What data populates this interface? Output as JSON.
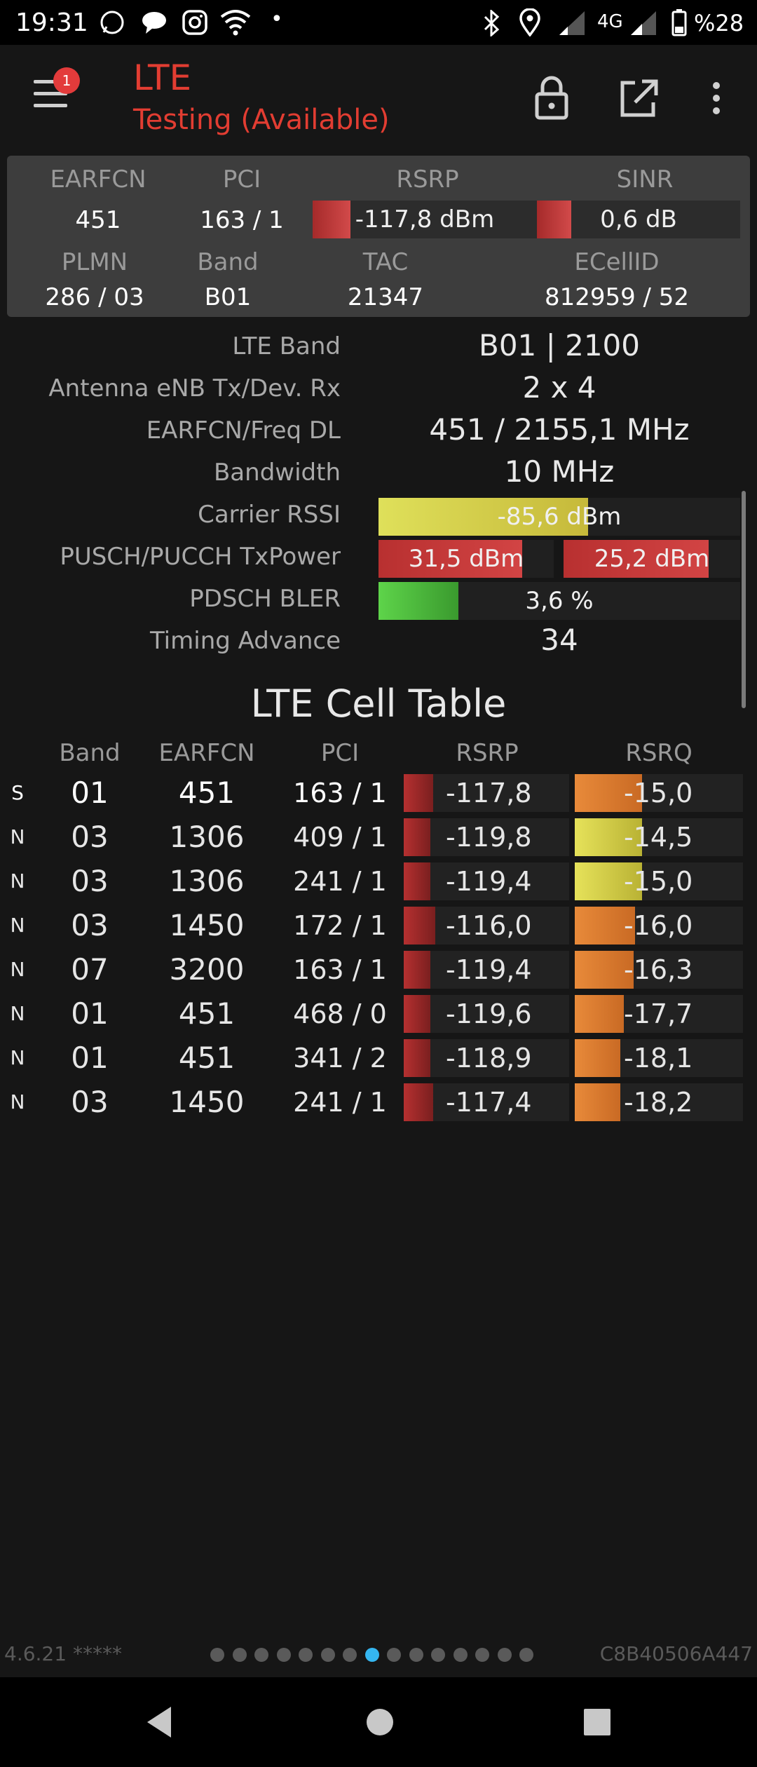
{
  "status_bar": {
    "time": "19:31",
    "network": "4G",
    "battery": "%28",
    "icons": [
      "whatsapp-icon",
      "chat-icon",
      "instagram-icon",
      "wifi-icon",
      "dot-icon",
      "bluetooth-icon",
      "location-icon",
      "signal-icon",
      "signal-icon",
      "battery-icon"
    ]
  },
  "app_bar": {
    "title": "LTE",
    "subtitle": "Testing (Available)",
    "badge_count": "1",
    "accent_color": "#e23d32"
  },
  "summary": {
    "headers": {
      "earfcn": "EARFCN",
      "pci": "PCI",
      "rsrp": "RSRP",
      "sinr": "SINR",
      "plmn": "PLMN",
      "band": "Band",
      "tac": "TAC",
      "ecellid": "ECellID"
    },
    "values": {
      "earfcn": "451",
      "pci": "163 / 1",
      "rsrp": "-117,8 dBm",
      "sinr": "0,6 dB",
      "plmn": "286 / 03",
      "band": "B01",
      "tac": "21347",
      "ecellid": "812959 / 52"
    },
    "rsrp_level": 0.17,
    "sinr_level": 0.17
  },
  "details": [
    {
      "label": "LTE Band",
      "value": "B01 | 2100"
    },
    {
      "label": "Antenna eNB Tx/Dev. Rx",
      "value": "2 x 4"
    },
    {
      "label": "EARFCN/Freq DL",
      "value": "451 / 2155,1 MHz"
    },
    {
      "label": "Bandwidth",
      "value": "10 MHz"
    },
    {
      "label": "Carrier RSSI",
      "value": "-85,6 dBm",
      "level": 0.58
    },
    {
      "label": "PUSCH/PUCCH TxPower",
      "value": "31,5 dBm",
      "value2": "25,2 dBm",
      "level": 0.82,
      "level2": 0.82
    },
    {
      "label": "PDSCH BLER",
      "value": "3,6 %",
      "level": 0.22
    },
    {
      "label": "Timing Advance",
      "value": "34"
    }
  ],
  "cell_table": {
    "title": "LTE Cell Table",
    "columns": [
      "Band",
      "EARFCN",
      "PCI",
      "RSRP",
      "RSRQ"
    ],
    "rows": [
      {
        "type": "S",
        "band": "01",
        "earfcn": "451",
        "pci": "163 / 1",
        "rsrp": "-117,8",
        "rsrq": "-15,0",
        "rsrp_level": 0.18,
        "rsrq_level": 0.4,
        "rsrq_color": "orange"
      },
      {
        "type": "N",
        "band": "03",
        "earfcn": "1306",
        "pci": "409 / 1",
        "rsrp": "-119,8",
        "rsrq": "-14,5",
        "rsrp_level": 0.16,
        "rsrq_level": 0.4,
        "rsrq_color": "yellow"
      },
      {
        "type": "N",
        "band": "03",
        "earfcn": "1306",
        "pci": "241 / 1",
        "rsrp": "-119,4",
        "rsrq": "-15,0",
        "rsrp_level": 0.16,
        "rsrq_level": 0.4,
        "rsrq_color": "yellow"
      },
      {
        "type": "N",
        "band": "03",
        "earfcn": "1450",
        "pci": "172 / 1",
        "rsrp": "-116,0",
        "rsrq": "-16,0",
        "rsrp_level": 0.19,
        "rsrq_level": 0.36,
        "rsrq_color": "orange"
      },
      {
        "type": "N",
        "band": "07",
        "earfcn": "3200",
        "pci": "163 / 1",
        "rsrp": "-119,4",
        "rsrq": "-16,3",
        "rsrp_level": 0.16,
        "rsrq_level": 0.35,
        "rsrq_color": "orange"
      },
      {
        "type": "N",
        "band": "01",
        "earfcn": "451",
        "pci": "468 / 0",
        "rsrp": "-119,6",
        "rsrq": "-17,7",
        "rsrp_level": 0.16,
        "rsrq_level": 0.29,
        "rsrq_color": "orange"
      },
      {
        "type": "N",
        "band": "01",
        "earfcn": "451",
        "pci": "341 / 2",
        "rsrp": "-118,9",
        "rsrq": "-18,1",
        "rsrp_level": 0.16,
        "rsrq_level": 0.27,
        "rsrq_color": "orange"
      },
      {
        "type": "N",
        "band": "03",
        "earfcn": "1450",
        "pci": "241 / 1",
        "rsrp": "-117,4",
        "rsrq": "-18,2",
        "rsrp_level": 0.18,
        "rsrq_level": 0.27,
        "rsrq_color": "orange"
      }
    ]
  },
  "footer": {
    "version": "4.6.21 *****",
    "device_id": "C8B40506A447",
    "page_count": 15,
    "active_page": 8
  }
}
